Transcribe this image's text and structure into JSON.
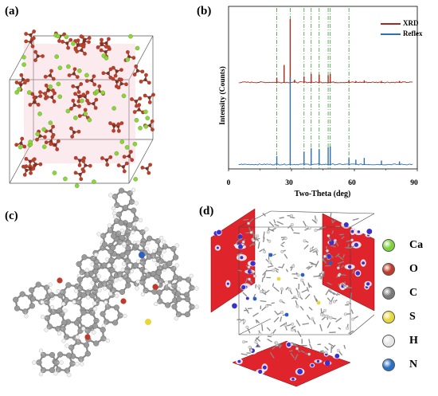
{
  "panels": {
    "a": {
      "label": "(a)"
    },
    "b": {
      "label": "(b)"
    },
    "c": {
      "label": "(c)"
    },
    "d": {
      "label": "(d)"
    }
  },
  "chart_data": {
    "type": "line",
    "title": "",
    "xlabel": "Two-Theta (deg)",
    "ylabel": "Intensity (Counts)",
    "xlim": [
      0,
      90
    ],
    "xticks": [
      "0",
      "30",
      "60",
      "90"
    ],
    "legend_position": "top-right",
    "reference_lines_x": [
      23,
      29.4,
      36,
      39.4,
      43.2,
      47.5,
      48.5,
      57.4
    ],
    "series": [
      {
        "name": "XRD",
        "color": "#a52a1a",
        "peaks": [
          [
            23,
            0.08
          ],
          [
            26.5,
            0.28
          ],
          [
            29.4,
            1.0
          ],
          [
            31.5,
            0.05
          ],
          [
            36,
            0.1
          ],
          [
            39.4,
            0.14
          ],
          [
            43.2,
            0.13
          ],
          [
            47.5,
            0.12
          ],
          [
            48.5,
            0.14
          ],
          [
            57.4,
            0.04
          ],
          [
            60.7,
            0.03
          ],
          [
            64.7,
            0.04
          ],
          [
            72.9,
            0.03
          ],
          [
            81.5,
            0.03
          ]
        ]
      },
      {
        "name": "Reflex",
        "color": "#2e6fb0",
        "peaks": [
          [
            23,
            0.1
          ],
          [
            29.4,
            1.0
          ],
          [
            36,
            0.15
          ],
          [
            39.4,
            0.19
          ],
          [
            43.2,
            0.18
          ],
          [
            47.5,
            0.2
          ],
          [
            48.5,
            0.21
          ],
          [
            57.4,
            0.08
          ],
          [
            60.7,
            0.06
          ],
          [
            64.7,
            0.08
          ],
          [
            72.9,
            0.05
          ],
          [
            81.5,
            0.04
          ]
        ]
      }
    ]
  },
  "legend_elements": [
    {
      "symbol": "Ca",
      "color": "#7fd13b"
    },
    {
      "symbol": "O",
      "color": "#c0392b"
    },
    {
      "symbol": "C",
      "color": "#7a7a7a"
    },
    {
      "symbol": "S",
      "color": "#e6d83a"
    },
    {
      "symbol": "H",
      "color": "#e6e6e6"
    },
    {
      "symbol": "N",
      "color": "#2a6fc4"
    }
  ]
}
